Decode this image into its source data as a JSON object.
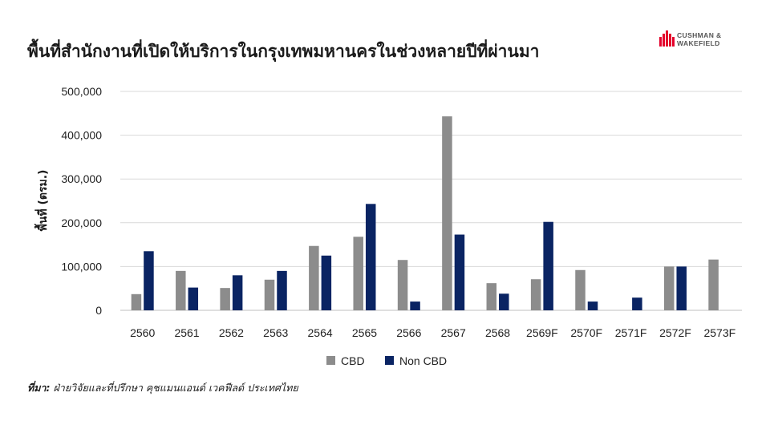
{
  "title": "พื้นที่สำนักงานที่เปิดให้บริการในกรุงเทพมหานครในช่วงหลายปีที่ผ่านมา",
  "logo": {
    "line1": "CUSHMAN &",
    "line2": "WAKEFIELD",
    "color": "#e4002b"
  },
  "source": {
    "label": "ที่มา:",
    "text": " ฝ่ายวิจัยและที่ปรึกษา คุชแมนแอนด์ เวคฟีลด์ ประเทศไทย"
  },
  "chart_data": {
    "type": "bar",
    "ylabel": "พื้นที่ (ตรม.)",
    "xlabel": "",
    "ylim": [
      0,
      500000
    ],
    "yticks": [
      0,
      100000,
      200000,
      300000,
      400000,
      500000
    ],
    "ytick_labels": [
      "0",
      "100,000",
      "200,000",
      "300,000",
      "400,000",
      "500,000"
    ],
    "grid": true,
    "legend_position": "bottom",
    "categories": [
      "2560",
      "2561",
      "2562",
      "2563",
      "2564",
      "2565",
      "2566",
      "2567",
      "2568",
      "2569F",
      "2570F",
      "2571F",
      "2572F",
      "2573F"
    ],
    "series": [
      {
        "name": "CBD",
        "color": "#8c8c8c",
        "values": [
          37000,
          90000,
          51000,
          70000,
          147000,
          168000,
          115000,
          443000,
          62000,
          71000,
          92000,
          0,
          100000,
          116000
        ]
      },
      {
        "name": "Non CBD",
        "color": "#0a2463",
        "values": [
          135000,
          52000,
          80000,
          90000,
          125000,
          243000,
          20000,
          173000,
          38000,
          202000,
          20000,
          29000,
          100000,
          0
        ]
      }
    ]
  }
}
